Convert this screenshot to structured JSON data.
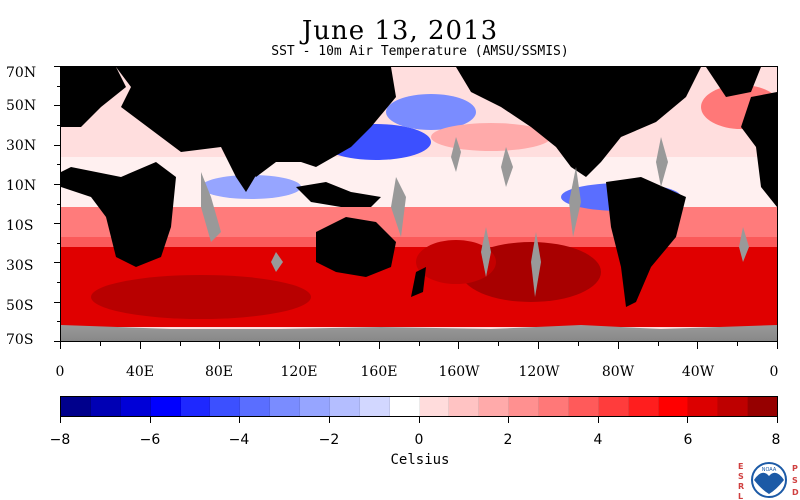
{
  "header": {
    "title": "June 13, 2013",
    "subtitle": "SST - 10m Air Temperature (AMSU/SSMIS)"
  },
  "map": {
    "projection": "equirectangular",
    "lat_range": [
      -70,
      70
    ],
    "lon_range": [
      0,
      360
    ],
    "lat_labels": [
      "70N",
      "50N",
      "30N",
      "10N",
      "10S",
      "30S",
      "50S",
      "70S"
    ],
    "lon_labels": [
      "0",
      "40E",
      "80E",
      "120E",
      "160E",
      "160W",
      "120W",
      "80W",
      "40W",
      "0"
    ],
    "land_color": "#000000",
    "missing_color": "#999999"
  },
  "colorbar": {
    "unit": "Celsius",
    "range": [
      -8,
      8
    ],
    "tick_labels": [
      "−8",
      "−6",
      "−4",
      "−2",
      "0",
      "2",
      "4",
      "6",
      "8"
    ],
    "colors": [
      "#00008c",
      "#0000b4",
      "#0000d7",
      "#0000ff",
      "#1e28ff",
      "#3c50ff",
      "#5a6eff",
      "#7a8cff",
      "#96a5ff",
      "#b4beff",
      "#d2d7ff",
      "#ffffff",
      "#ffdcdc",
      "#ffc3c3",
      "#ffaaaa",
      "#ff9090",
      "#ff7878",
      "#ff5a5a",
      "#ff3c3c",
      "#ff1e1e",
      "#ff0000",
      "#dc0000",
      "#be0000",
      "#960000"
    ]
  },
  "logo": {
    "left_letters": "ESRL",
    "right_letters": "PSD",
    "center_text": "NOAA"
  }
}
